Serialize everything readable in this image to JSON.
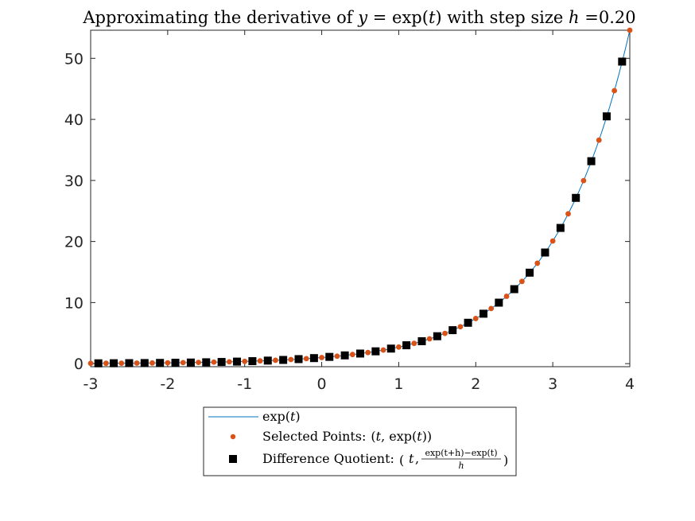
{
  "chart_data": {
    "type": "line",
    "title": "Approximating the derivative of y = exp(t) with step size h =0.20",
    "title_parts": {
      "pre": "Approximating the derivative of ",
      "y_var": "y",
      "eq": " = exp(",
      "t_var": "t",
      "mid": ") with step size ",
      "h_var": "h",
      "post": " =0.20"
    },
    "xlabel": "",
    "ylabel": "",
    "xlim": [
      -3,
      4
    ],
    "ylim": [
      -0.5,
      54.6
    ],
    "x_ticks": [
      -3,
      -2,
      -1,
      0,
      1,
      2,
      3,
      4
    ],
    "x_tick_labels": [
      "-3",
      "-2",
      "-1",
      "0",
      "1",
      "2",
      "3",
      "4"
    ],
    "y_ticks": [
      0,
      10,
      20,
      30,
      40,
      50
    ],
    "y_tick_labels": [
      "0",
      "10",
      "20",
      "30",
      "40",
      "50"
    ],
    "grid": false,
    "legend_position": "below",
    "series": [
      {
        "name": "exp(t)",
        "marker": "line",
        "color": "#0072BD",
        "x_range": [
          -3,
          4
        ],
        "formula": "exp(t)"
      },
      {
        "name": "Selected Points: (t, exp(t))",
        "marker": "circle",
        "color": "#D95319",
        "x": [
          -3.0,
          -2.8,
          -2.6,
          -2.4,
          -2.2,
          -2.0,
          -1.8,
          -1.6,
          -1.4,
          -1.2,
          -1.0,
          -0.8,
          -0.6,
          -0.4,
          -0.2,
          0.0,
          0.2,
          0.4,
          0.6,
          0.8,
          1.0,
          1.2,
          1.4,
          1.6,
          1.8,
          2.0,
          2.2,
          2.4,
          2.6,
          2.8,
          3.0,
          3.2,
          3.4,
          3.6,
          3.8,
          4.0
        ],
        "y": [
          0.0498,
          0.0608,
          0.0743,
          0.0907,
          0.1108,
          0.1353,
          0.1653,
          0.2019,
          0.2466,
          0.3012,
          0.3679,
          0.4493,
          0.5488,
          0.6703,
          0.8187,
          1.0,
          1.2214,
          1.4918,
          1.8221,
          2.2255,
          2.7183,
          3.3201,
          4.0552,
          4.953,
          6.0496,
          7.3891,
          9.025,
          11.0232,
          13.4637,
          16.4446,
          20.0855,
          24.5325,
          29.9641,
          36.5982,
          44.7012,
          54.5982
        ]
      },
      {
        "name": "Difference Quotient: (t, (exp(t+h)−exp(t))/h)",
        "marker": "square",
        "color": "#000000",
        "x": [
          -2.9,
          -2.7,
          -2.5,
          -2.3,
          -2.1,
          -1.9,
          -1.7,
          -1.5,
          -1.3,
          -1.1,
          -0.9,
          -0.7,
          -0.5,
          -0.3,
          -0.1,
          0.1,
          0.3,
          0.5,
          0.7,
          0.9,
          1.1,
          1.3,
          1.5,
          1.7,
          1.9,
          2.1,
          2.3,
          2.5,
          2.7,
          2.9,
          3.1,
          3.3,
          3.5,
          3.7,
          3.9
        ],
        "y": [
          0.0551,
          0.0673,
          0.0822,
          0.1004,
          0.1226,
          0.1497,
          0.1829,
          0.2234,
          0.2728,
          0.3332,
          0.407,
          0.4971,
          0.6072,
          0.7416,
          0.9058,
          1.1064,
          1.3513,
          1.6505,
          2.016,
          2.4624,
          3.0076,
          3.6735,
          4.4868,
          5.4802,
          6.6936,
          8.1756,
          9.9857,
          12.1966,
          14.897,
          18.1952,
          22.2237,
          27.1442,
          33.1541,
          40.4946,
          49.4603
        ]
      }
    ],
    "legend": {
      "line_label": "exp",
      "line_var": "t",
      "points_label": "Selected Points:",
      "points_math": "(t, exp(t))",
      "points_math_parts": {
        "open": "(",
        "t1": "t",
        "comma": ", exp(",
        "t2": "t",
        "close": "))"
      },
      "dq_label": "Difference Quotient:",
      "dq_numerator": "exp(t+h)−exp(t)",
      "dq_denominator": "h",
      "dq_t": "t"
    }
  }
}
